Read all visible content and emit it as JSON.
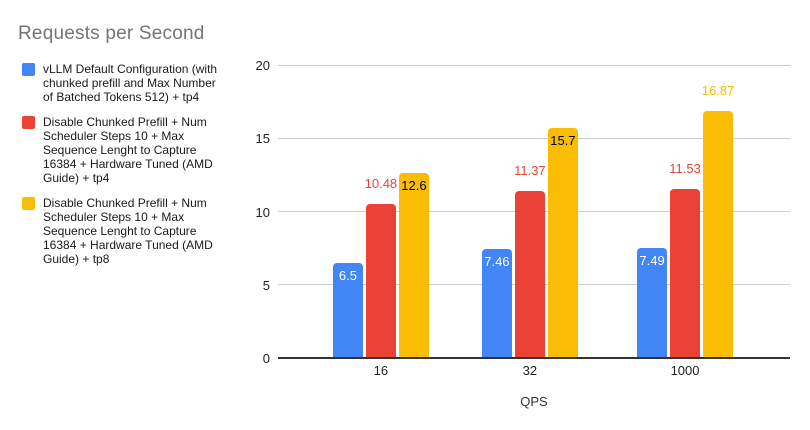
{
  "title": "Requests per Second",
  "legend": {
    "items": [
      {
        "color": "#4285F4",
        "label": "vLLM Default Configuration (with\nchunked prefill and Max Number\nof Batched Tokens 512) + tp4"
      },
      {
        "color": "#EA4335",
        "label": "Disable Chunked Prefill + Num\nScheduler Steps 10 + Max\nSequence Lenght to Capture\n16384 + Hardware Tuned (AMD\nGuide) + tp4"
      },
      {
        "color": "#FBBC04",
        "label": "Disable Chunked Prefill + Num\nScheduler Steps 10 + Max\nSequence Lenght to Capture\n16384 + Hardware Tuned (AMD\nGuide) + tp8"
      }
    ]
  },
  "chart_data": {
    "type": "bar",
    "title": "Requests per Second",
    "categories": [
      "16",
      "32",
      "1000"
    ],
    "xlabel": "QPS",
    "ylabel": "",
    "ylim": [
      0,
      20
    ],
    "yticks": [
      0,
      5,
      10,
      15,
      20
    ],
    "grid": true,
    "legend_position": "left",
    "series": [
      {
        "name": "vLLM Default Configuration (with chunked prefill and Max Number of Batched Tokens 512) + tp4",
        "color": "#4285F4",
        "values": [
          6.5,
          7.46,
          7.49
        ],
        "labels": [
          "6.5",
          "7.46",
          "7.49"
        ],
        "label_positions": [
          "inside",
          "inside",
          "inside"
        ],
        "label_colors": [
          "#ffffff",
          "#ffffff",
          "#ffffff"
        ]
      },
      {
        "name": "Disable Chunked Prefill + Num Scheduler Steps 10 + Max Sequence Lenght to Capture 16384 + Hardware Tuned (AMD Guide) + tp4",
        "color": "#EA4335",
        "values": [
          10.48,
          11.37,
          11.53
        ],
        "labels": [
          "10.48",
          "11.37",
          "11.53"
        ],
        "label_positions": [
          "above",
          "above",
          "above"
        ],
        "label_colors": [
          "#EA4335",
          "#EA4335",
          "#EA4335"
        ]
      },
      {
        "name": "Disable Chunked Prefill + Num Scheduler Steps 10 + Max Sequence Lenght to Capture 16384 + Hardware Tuned (AMD Guide) + tp8",
        "color": "#FBBC04",
        "values": [
          12.6,
          15.7,
          16.87
        ],
        "labels": [
          "12.6",
          "15.7",
          "16.87"
        ],
        "label_positions": [
          "inside",
          "inside",
          "above"
        ],
        "label_colors": [
          "#000000",
          "#000000",
          "#FBBC04"
        ]
      }
    ]
  },
  "colors": {
    "background": "#ffffff",
    "title_text": "#757575",
    "legend_text": "#1a1a1a",
    "tick_text": "#222222",
    "axis_title_text": "#333333",
    "gridline": "#cccccc",
    "baseline": "#333333",
    "series_blue": "#4285F4",
    "series_red": "#EA4335",
    "series_yellow": "#FBBC04"
  }
}
